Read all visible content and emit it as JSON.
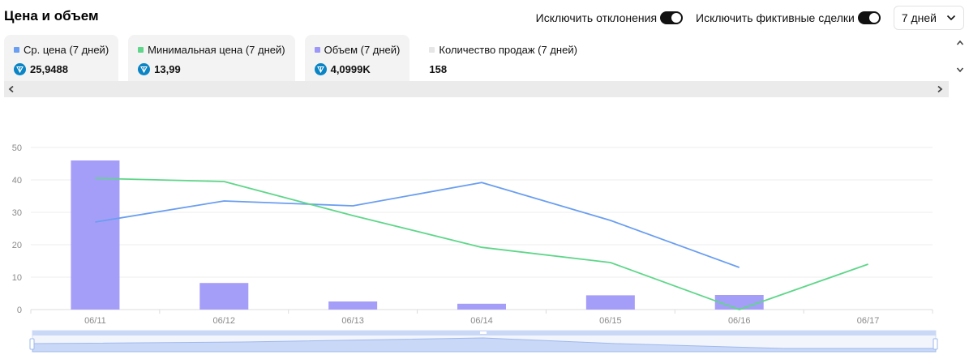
{
  "header": {
    "title": "Цена и объем",
    "toggles": [
      {
        "label": "Исключить отклонения",
        "on": true
      },
      {
        "label": "Исключить фиктивные сделки",
        "on": true
      }
    ],
    "period": "7 дней"
  },
  "cards": [
    {
      "label": "Ср. цена (7 дней)",
      "value": "25,9488",
      "color": "#6a9ef0",
      "icon": "ton-icon"
    },
    {
      "label": "Минимальная цена (7 дней)",
      "value": "13,99",
      "color": "#5fd68a",
      "icon": "ton-icon"
    },
    {
      "label": "Объем (7 дней)",
      "value": "4,0999K",
      "color": "#9d97f7",
      "icon": "ton-icon"
    },
    {
      "label": "Количество продаж (7 дней)",
      "value": "158",
      "color": "#e6e6e6",
      "icon": ""
    }
  ],
  "chart_data": {
    "type": "bar",
    "categories": [
      "06/11",
      "06/12",
      "06/13",
      "06/14",
      "06/15",
      "06/16",
      "06/17"
    ],
    "ylim": [
      0,
      50
    ],
    "yticks": [
      "0",
      "10",
      "20",
      "30",
      "40",
      "50"
    ],
    "grid": true,
    "series": [
      {
        "kind": "bar",
        "color": "#a59ef9",
        "values": [
          46,
          8.2,
          2.5,
          1.8,
          4.4,
          4.5,
          null
        ]
      },
      {
        "kind": "line",
        "color": "#6a9ef0",
        "values": [
          27,
          33.5,
          32,
          39.2,
          27.5,
          13,
          null
        ]
      },
      {
        "kind": "line",
        "color": "#5fd68a",
        "values": [
          40.5,
          39.5,
          29,
          19.2,
          14.5,
          0,
          14
        ]
      }
    ]
  }
}
